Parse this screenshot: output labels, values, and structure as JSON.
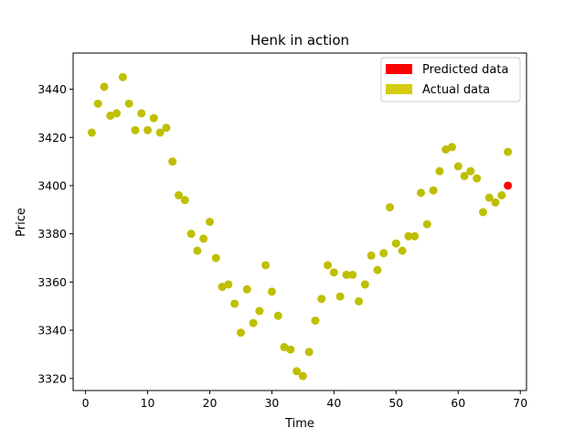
{
  "chart_data": {
    "type": "scatter",
    "title": "Henk in action",
    "xlabel": "Time",
    "ylabel": "Price",
    "xlim": [
      -2,
      71
    ],
    "ylim": [
      3315,
      3455
    ],
    "xticks": [
      0,
      10,
      20,
      30,
      40,
      50,
      60,
      70
    ],
    "yticks": [
      3320,
      3340,
      3360,
      3380,
      3400,
      3420,
      3440
    ],
    "grid": false,
    "legend_position": "top-right",
    "series": [
      {
        "name": "Actual data",
        "color": "#bfbf00",
        "legend_color": "#d4cc0c",
        "points": [
          [
            1,
            3422
          ],
          [
            2,
            3434
          ],
          [
            3,
            3441
          ],
          [
            4,
            3429
          ],
          [
            5,
            3430
          ],
          [
            6,
            3445
          ],
          [
            7,
            3434
          ],
          [
            8,
            3423
          ],
          [
            9,
            3430
          ],
          [
            10,
            3423
          ],
          [
            11,
            3428
          ],
          [
            12,
            3422
          ],
          [
            13,
            3424
          ],
          [
            14,
            3410
          ],
          [
            15,
            3396
          ],
          [
            16,
            3394
          ],
          [
            17,
            3380
          ],
          [
            18,
            3373
          ],
          [
            19,
            3378
          ],
          [
            20,
            3385
          ],
          [
            21,
            3370
          ],
          [
            22,
            3358
          ],
          [
            23,
            3359
          ],
          [
            24,
            3351
          ],
          [
            25,
            3339
          ],
          [
            26,
            3357
          ],
          [
            27,
            3343
          ],
          [
            28,
            3348
          ],
          [
            29,
            3367
          ],
          [
            30,
            3356
          ],
          [
            31,
            3346
          ],
          [
            32,
            3333
          ],
          [
            33,
            3332
          ],
          [
            34,
            3323
          ],
          [
            35,
            3321
          ],
          [
            36,
            3331
          ],
          [
            37,
            3344
          ],
          [
            38,
            3353
          ],
          [
            39,
            3367
          ],
          [
            40,
            3364
          ],
          [
            41,
            3354
          ],
          [
            42,
            3363
          ],
          [
            43,
            3363
          ],
          [
            44,
            3352
          ],
          [
            45,
            3359
          ],
          [
            46,
            3371
          ],
          [
            47,
            3365
          ],
          [
            48,
            3372
          ],
          [
            49,
            3391
          ],
          [
            50,
            3376
          ],
          [
            51,
            3373
          ],
          [
            52,
            3379
          ],
          [
            53,
            3379
          ],
          [
            54,
            3397
          ],
          [
            55,
            3384
          ],
          [
            56,
            3398
          ],
          [
            57,
            3406
          ],
          [
            58,
            3415
          ],
          [
            59,
            3416
          ],
          [
            60,
            3408
          ],
          [
            61,
            3404
          ],
          [
            62,
            3406
          ],
          [
            63,
            3403
          ],
          [
            64,
            3389
          ],
          [
            65,
            3395
          ],
          [
            66,
            3393
          ],
          [
            67,
            3396
          ],
          [
            68,
            3414
          ]
        ]
      },
      {
        "name": "Predicted data",
        "color": "#ff0000",
        "legend_color": "#ff0000",
        "points": [
          [
            68,
            3400
          ]
        ]
      }
    ],
    "legend_order": [
      "Predicted data",
      "Actual data"
    ]
  }
}
